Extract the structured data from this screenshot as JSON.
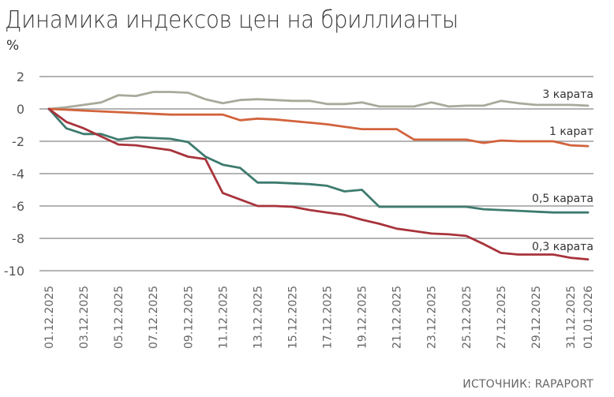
{
  "chart_data": {
    "type": "line",
    "title": "Динамика индексов цен на бриллианты",
    "ylabel": "%",
    "xlabel": "",
    "ylim": [
      -10,
      2
    ],
    "yticks": [
      2,
      0,
      -2,
      -4,
      -6,
      -8,
      -10
    ],
    "grid": true,
    "legend_position": "inline-right",
    "source": "ИСТОЧНИК: RAPAPORT",
    "x": [
      "01.12.2025",
      "02.12.2025",
      "03.12.2025",
      "04.12.2025",
      "05.12.2025",
      "06.12.2025",
      "07.12.2025",
      "08.12.2025",
      "09.12.2025",
      "10.12.2025",
      "11.12.2025",
      "12.12.2025",
      "13.12.2025",
      "14.12.2025",
      "15.12.2025",
      "16.12.2025",
      "17.12.2025",
      "18.12.2025",
      "19.12.2025",
      "20.12.2025",
      "21.12.2025",
      "22.12.2025",
      "23.12.2025",
      "24.12.2025",
      "25.12.2025",
      "26.12.2025",
      "27.12.2025",
      "28.12.2025",
      "29.12.2025",
      "30.12.2025",
      "31.12.2025",
      "01.01.2026"
    ],
    "xtick_labels": [
      "01.12.2025",
      "03.12.2025",
      "05.12.2025",
      "07.12.2025",
      "09.12.2025",
      "11.12.2025",
      "13.12.2025",
      "15.12.2025",
      "17.12.2025",
      "19.12.2025",
      "21.12.2025",
      "23.12.2025",
      "25.12.2025",
      "27.12.2025",
      "29.12.2025",
      "31.12.2025",
      "01.01.2026"
    ],
    "series": [
      {
        "name": "3 карата",
        "color": "#a9a99b",
        "values": [
          0,
          0.1,
          0.25,
          0.4,
          0.85,
          0.8,
          1.05,
          1.05,
          1.0,
          0.6,
          0.35,
          0.55,
          0.6,
          0.55,
          0.5,
          0.5,
          0.3,
          0.3,
          0.4,
          0.15,
          0.15,
          0.15,
          0.4,
          0.15,
          0.2,
          0.2,
          0.5,
          0.35,
          0.25,
          0.25,
          0.25,
          0.2
        ]
      },
      {
        "name": "1 карат",
        "color": "#d2633c",
        "values": [
          0,
          -0.05,
          -0.1,
          -0.15,
          -0.2,
          -0.25,
          -0.3,
          -0.35,
          -0.35,
          -0.35,
          -0.35,
          -0.7,
          -0.6,
          -0.65,
          -0.75,
          -0.85,
          -0.95,
          -1.1,
          -1.25,
          -1.25,
          -1.25,
          -1.9,
          -1.9,
          -1.9,
          -1.9,
          -2.1,
          -1.95,
          -2.0,
          -2.0,
          -2.0,
          -2.25,
          -2.3
        ]
      },
      {
        "name": "0,5 карата",
        "color": "#3e7b6f",
        "values": [
          0,
          -1.2,
          -1.55,
          -1.55,
          -1.9,
          -1.75,
          -1.8,
          -1.85,
          -2.05,
          -2.95,
          -3.45,
          -3.65,
          -4.55,
          -4.55,
          -4.6,
          -4.65,
          -4.75,
          -5.1,
          -5.0,
          -6.05,
          -6.05,
          -6.05,
          -6.05,
          -6.05,
          -6.05,
          -6.2,
          -6.25,
          -6.3,
          -6.35,
          -6.4,
          -6.4,
          -6.4
        ]
      },
      {
        "name": "0,3 карата",
        "color": "#a8333b",
        "values": [
          0,
          -0.8,
          -1.2,
          -1.7,
          -2.2,
          -2.25,
          -2.4,
          -2.55,
          -2.95,
          -3.1,
          -5.2,
          -5.6,
          -6.0,
          -6.0,
          -6.05,
          -6.25,
          -6.4,
          -6.55,
          -6.85,
          -7.1,
          -7.4,
          -7.55,
          -7.7,
          -7.75,
          -7.85,
          -8.35,
          -8.9,
          -9.0,
          -9.0,
          -9.0,
          -9.2,
          -9.3
        ]
      }
    ]
  },
  "header": {
    "title": "Динамика индексов цен на бриллианты",
    "unit": "%"
  },
  "footer": {
    "source": "ИСТОЧНИК: RAPAPORT"
  }
}
